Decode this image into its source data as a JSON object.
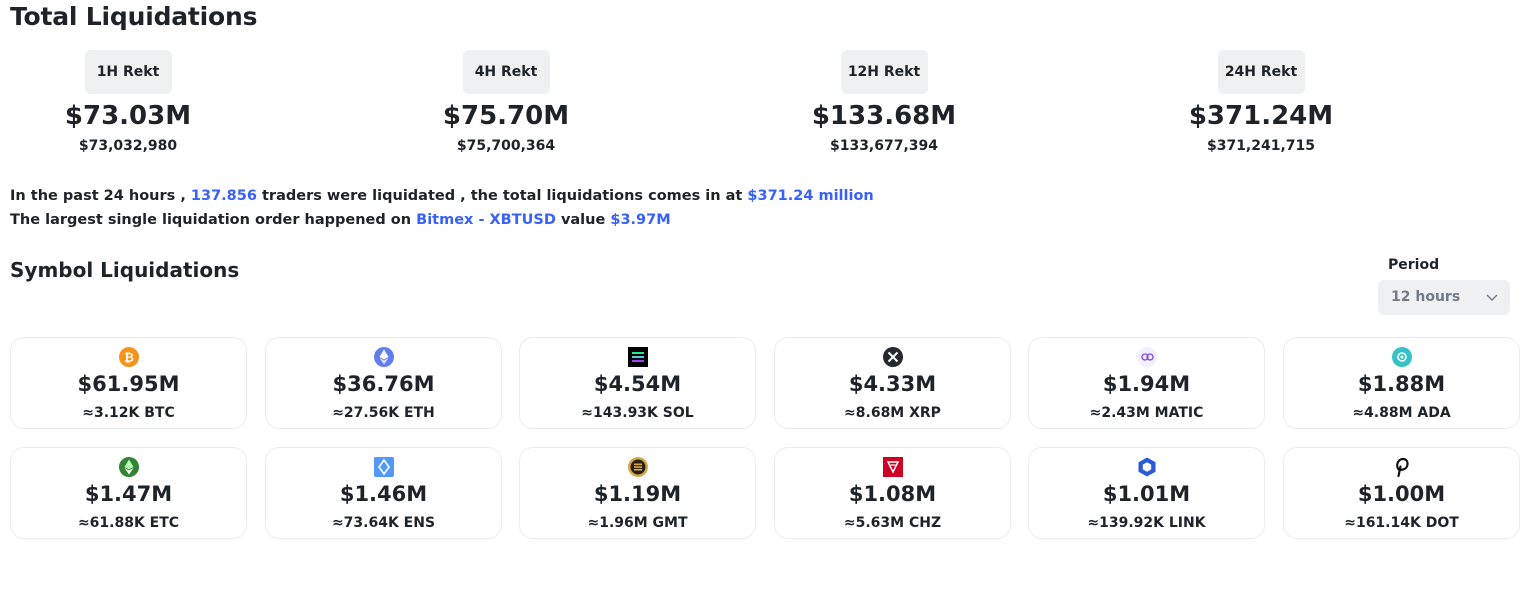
{
  "title": "Total Liquidations",
  "rekt": [
    {
      "label": "1H Rekt",
      "value": "$73.03M",
      "exact": "$73,032,980"
    },
    {
      "label": "4H Rekt",
      "value": "$75.70M",
      "exact": "$75,700,364"
    },
    {
      "label": "12H Rekt",
      "value": "$133.68M",
      "exact": "$133,677,394"
    },
    {
      "label": "24H Rekt",
      "value": "$371.24M",
      "exact": "$371,241,715"
    }
  ],
  "summary": {
    "line1_a": "In the past 24 hours , ",
    "traders": "137.856",
    "line1_b": " traders were liquidated , the total liquidations comes in at ",
    "total": "$371.24 million",
    "line2_a": "The largest single liquidation order happened on ",
    "exchange": "Bitmex - XBTUSD",
    "line2_b": " value ",
    "largest": "$3.97M"
  },
  "symbols_title": "Symbol Liquidations",
  "period": {
    "label": "Period",
    "selected": "12 hours"
  },
  "symbols": [
    {
      "icon": "btc-icon",
      "value": "$61.95M",
      "amount": "≈3.12K BTC"
    },
    {
      "icon": "eth-icon",
      "value": "$36.76M",
      "amount": "≈27.56K ETH"
    },
    {
      "icon": "sol-icon",
      "value": "$4.54M",
      "amount": "≈143.93K SOL"
    },
    {
      "icon": "xrp-icon",
      "value": "$4.33M",
      "amount": "≈8.68M XRP"
    },
    {
      "icon": "matic-icon",
      "value": "$1.94M",
      "amount": "≈2.43M MATIC"
    },
    {
      "icon": "ada-icon",
      "value": "$1.88M",
      "amount": "≈4.88M ADA"
    },
    {
      "icon": "etc-icon",
      "value": "$1.47M",
      "amount": "≈61.88K ETC"
    },
    {
      "icon": "ens-icon",
      "value": "$1.46M",
      "amount": "≈73.64K ENS"
    },
    {
      "icon": "gmt-icon",
      "value": "$1.19M",
      "amount": "≈1.96M GMT"
    },
    {
      "icon": "chz-icon",
      "value": "$1.08M",
      "amount": "≈5.63M CHZ"
    },
    {
      "icon": "link-icon",
      "value": "$1.01M",
      "amount": "≈139.92K LINK"
    },
    {
      "icon": "dot-icon",
      "value": "$1.00M",
      "amount": "≈161.14K DOT"
    }
  ],
  "colors": {
    "accent": "#3861fb",
    "text": "#1e2329",
    "pill": "#eef0f2"
  }
}
